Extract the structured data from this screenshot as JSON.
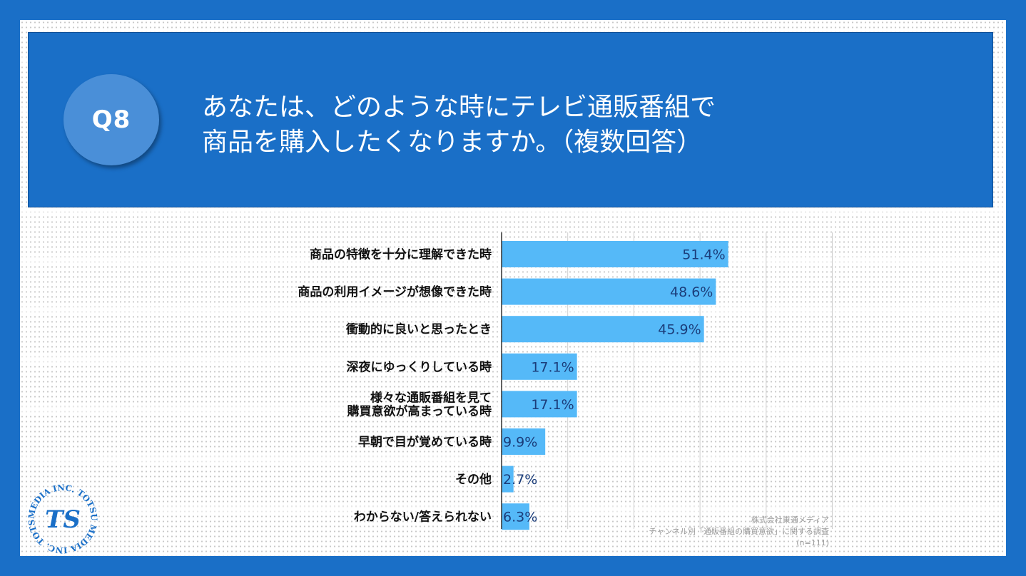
{
  "header": {
    "badge": "Q8",
    "question_line1": "あなたは、どのような時にテレビ通販番組で",
    "question_line2": "商品を購入したくなりますか。（複数回答）"
  },
  "chart_data": {
    "type": "bar",
    "orientation": "horizontal",
    "title": "あなたは、どのような時にテレビ通販番組で商品を購入したくなりますか。（複数回答）",
    "categories": [
      [
        "商品の特徴を十分に理解できた時"
      ],
      [
        "商品の利用イメージが想像できた時"
      ],
      [
        "衝動的に良いと思ったとき"
      ],
      [
        "深夜にゆっくりしている時"
      ],
      [
        "様々な通販番組を見て",
        "購買意欲が高まっている時"
      ],
      [
        "早朝で目が覚めている時"
      ],
      [
        "その他"
      ],
      [
        "わからない/答えられない"
      ]
    ],
    "values": [
      51.4,
      48.6,
      45.9,
      17.1,
      17.1,
      9.9,
      2.7,
      6.3
    ],
    "value_labels": [
      "51.4%",
      "48.6%",
      "45.9%",
      "17.1%",
      "17.1%",
      "9.9%",
      "2.7%",
      "6.3%"
    ],
    "xlim": [
      0,
      80
    ],
    "grid_step": 15,
    "bar_color": "#55b9f8",
    "value_color": "#1b3d7a",
    "xlabel": "",
    "ylabel": ""
  },
  "source": {
    "line1": "株式会社東通メディア",
    "line2": "チャンネル別「通販番組の購買意欲」に関する調査",
    "line3": "(n=111)"
  },
  "logo": {
    "ring_text": "MEDIA INC. TOTSU MEDIA INC. TOTSU",
    "mark": "TS",
    "color": "#1a6fc7"
  }
}
